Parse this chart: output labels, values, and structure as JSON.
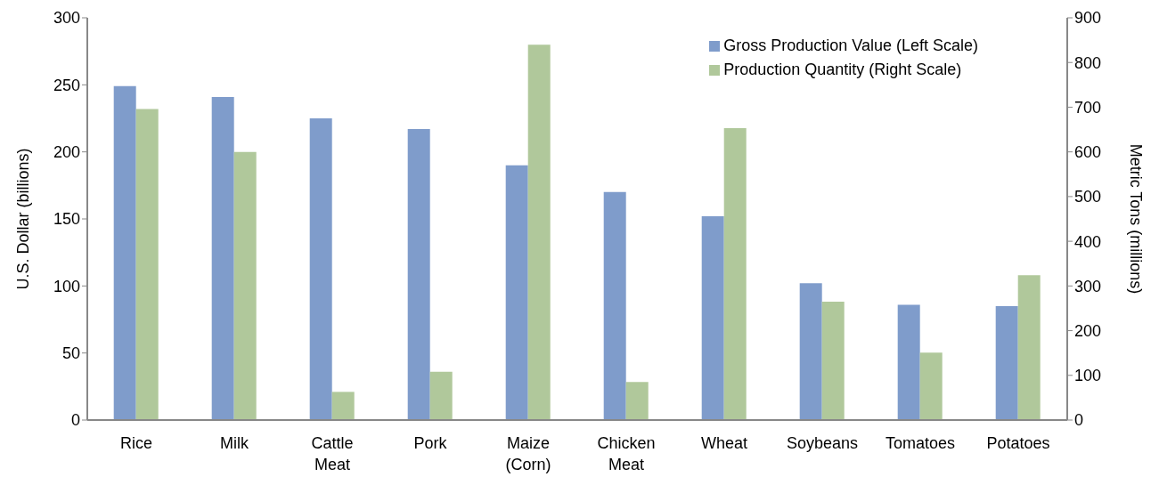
{
  "chart_data": {
    "type": "bar",
    "categories": [
      "Rice",
      "Milk",
      "Cattle Meat",
      "Pork",
      "Maize (Corn)",
      "Chicken Meat",
      "Wheat",
      "Soybeans",
      "Tomatoes",
      "Potatoes"
    ],
    "series": [
      {
        "name": "Gross Production Value (Left Scale)",
        "color": "#7f9ccb",
        "values": [
          249,
          241,
          225,
          217,
          190,
          170,
          152,
          102,
          86,
          85
        ]
      },
      {
        "name": "Production Quantity (Right Scale)",
        "color": "#b0c89b",
        "axis": "y2",
        "values": [
          696,
          600,
          63,
          108,
          840,
          85,
          653,
          265,
          151,
          324
        ]
      }
    ],
    "ylabel": "U.S. Dollar (billions)",
    "y2label": "Metric Tons (millions)",
    "ylim": [
      0,
      300
    ],
    "yticks": [
      0,
      50,
      100,
      150,
      200,
      250,
      300
    ],
    "y2lim": [
      0,
      900
    ],
    "y2ticks": [
      0,
      100,
      200,
      300,
      400,
      500,
      600,
      700,
      800,
      900
    ],
    "grid": false,
    "legend": "top right"
  }
}
